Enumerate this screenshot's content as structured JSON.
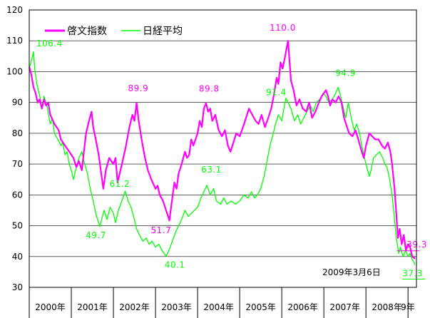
{
  "chart_data": {
    "type": "line",
    "xlabel": "",
    "ylabel": "",
    "ylim": [
      30,
      120
    ],
    "yticks": [
      30,
      40,
      50,
      60,
      70,
      80,
      90,
      100,
      110,
      120
    ],
    "xlim": [
      2000.0,
      2009.2
    ],
    "x_categories": [
      "2000年",
      "2001年",
      "2002年",
      "2003年",
      "2004年",
      "2005年",
      "2006年",
      "2007年",
      "2008年",
      "9年"
    ],
    "grid": true,
    "legend": "top-left",
    "background": "#ffffff",
    "series": [
      {
        "name": "啓文指数",
        "color": "#ff00ff",
        "points": [
          [
            2000.0,
            101.5
          ],
          [
            2000.05,
            99
          ],
          [
            2000.1,
            95
          ],
          [
            2000.15,
            93
          ],
          [
            2000.2,
            90
          ],
          [
            2000.25,
            91
          ],
          [
            2000.3,
            88
          ],
          [
            2000.35,
            91
          ],
          [
            2000.4,
            89
          ],
          [
            2000.45,
            90
          ],
          [
            2000.5,
            86
          ],
          [
            2000.6,
            83
          ],
          [
            2000.7,
            81
          ],
          [
            2000.75,
            78
          ],
          [
            2000.85,
            76
          ],
          [
            2000.95,
            74
          ],
          [
            2001.05,
            72
          ],
          [
            2001.12,
            69
          ],
          [
            2001.18,
            71
          ],
          [
            2001.25,
            68
          ],
          [
            2001.3,
            74
          ],
          [
            2001.35,
            80
          ],
          [
            2001.42,
            84
          ],
          [
            2001.48,
            87
          ],
          [
            2001.52,
            82
          ],
          [
            2001.58,
            78
          ],
          [
            2001.65,
            73
          ],
          [
            2001.72,
            66
          ],
          [
            2001.76,
            62
          ],
          [
            2001.82,
            68
          ],
          [
            2001.9,
            72
          ],
          [
            2002.0,
            70
          ],
          [
            2002.05,
            72
          ],
          [
            2002.1,
            64
          ],
          [
            2002.15,
            67
          ],
          [
            2002.22,
            71
          ],
          [
            2002.3,
            76
          ],
          [
            2002.38,
            82
          ],
          [
            2002.45,
            86
          ],
          [
            2002.5,
            84
          ],
          [
            2002.55,
            89.9
          ],
          [
            2002.6,
            84
          ],
          [
            2002.67,
            78
          ],
          [
            2002.75,
            72
          ],
          [
            2002.82,
            68
          ],
          [
            2002.9,
            65
          ],
          [
            2003.0,
            62
          ],
          [
            2003.05,
            63
          ],
          [
            2003.1,
            60
          ],
          [
            2003.18,
            58
          ],
          [
            2003.25,
            55
          ],
          [
            2003.3,
            53
          ],
          [
            2003.33,
            51.7
          ],
          [
            2003.38,
            57
          ],
          [
            2003.45,
            64
          ],
          [
            2003.5,
            62
          ],
          [
            2003.55,
            67
          ],
          [
            2003.62,
            70
          ],
          [
            2003.7,
            74
          ],
          [
            2003.75,
            72
          ],
          [
            2003.8,
            73
          ],
          [
            2003.85,
            78
          ],
          [
            2003.9,
            76
          ],
          [
            2004.0,
            80
          ],
          [
            2004.05,
            84
          ],
          [
            2004.1,
            82
          ],
          [
            2004.15,
            88
          ],
          [
            2004.2,
            89.8
          ],
          [
            2004.25,
            87
          ],
          [
            2004.3,
            88
          ],
          [
            2004.35,
            84
          ],
          [
            2004.42,
            86
          ],
          [
            2004.5,
            81
          ],
          [
            2004.58,
            79
          ],
          [
            2004.65,
            81
          ],
          [
            2004.72,
            76
          ],
          [
            2004.78,
            74
          ],
          [
            2004.85,
            77
          ],
          [
            2004.92,
            80
          ],
          [
            2005.0,
            79
          ],
          [
            2005.08,
            82
          ],
          [
            2005.15,
            85
          ],
          [
            2005.22,
            88
          ],
          [
            2005.3,
            86
          ],
          [
            2005.38,
            84
          ],
          [
            2005.45,
            83
          ],
          [
            2005.52,
            86
          ],
          [
            2005.6,
            82
          ],
          [
            2005.68,
            85
          ],
          [
            2005.75,
            88
          ],
          [
            2005.82,
            93
          ],
          [
            2005.88,
            98
          ],
          [
            2005.92,
            96
          ],
          [
            2005.97,
            103
          ],
          [
            2006.02,
            101
          ],
          [
            2006.08,
            105
          ],
          [
            2006.12,
            108
          ],
          [
            2006.15,
            110.0
          ],
          [
            2006.18,
            104
          ],
          [
            2006.22,
            97
          ],
          [
            2006.28,
            94
          ],
          [
            2006.35,
            89
          ],
          [
            2006.42,
            91
          ],
          [
            2006.5,
            88
          ],
          [
            2006.58,
            87
          ],
          [
            2006.65,
            90
          ],
          [
            2006.72,
            85
          ],
          [
            2006.8,
            87
          ],
          [
            2006.88,
            90
          ],
          [
            2006.95,
            92
          ],
          [
            2007.0,
            93
          ],
          [
            2007.05,
            94
          ],
          [
            2007.1,
            92
          ],
          [
            2007.15,
            89
          ],
          [
            2007.2,
            91
          ],
          [
            2007.28,
            90
          ],
          [
            2007.35,
            92
          ],
          [
            2007.42,
            90
          ],
          [
            2007.48,
            85
          ],
          [
            2007.55,
            82
          ],
          [
            2007.6,
            80
          ],
          [
            2007.68,
            79
          ],
          [
            2007.75,
            81
          ],
          [
            2007.82,
            78
          ],
          [
            2007.9,
            74
          ],
          [
            2007.95,
            72
          ],
          [
            2008.0,
            76
          ],
          [
            2008.08,
            80
          ],
          [
            2008.15,
            79
          ],
          [
            2008.22,
            78
          ],
          [
            2008.3,
            78
          ],
          [
            2008.38,
            76
          ],
          [
            2008.45,
            75
          ],
          [
            2008.52,
            77
          ],
          [
            2008.58,
            74
          ],
          [
            2008.62,
            70
          ],
          [
            2008.68,
            62
          ],
          [
            2008.72,
            54
          ],
          [
            2008.76,
            46
          ],
          [
            2008.8,
            49
          ],
          [
            2008.85,
            44
          ],
          [
            2008.9,
            47
          ],
          [
            2008.95,
            42
          ],
          [
            2009.0,
            44
          ],
          [
            2009.05,
            43
          ],
          [
            2009.1,
            40
          ],
          [
            2009.17,
            39.3
          ]
        ]
      },
      {
        "name": "日経平均",
        "color": "#00ff00",
        "points": [
          [
            2000.0,
            101
          ],
          [
            2000.04,
            103
          ],
          [
            2000.1,
            106.4
          ],
          [
            2000.13,
            101
          ],
          [
            2000.18,
            96
          ],
          [
            2000.25,
            92
          ],
          [
            2000.3,
            88
          ],
          [
            2000.35,
            92
          ],
          [
            2000.42,
            89
          ],
          [
            2000.5,
            83
          ],
          [
            2000.55,
            85
          ],
          [
            2000.6,
            80
          ],
          [
            2000.68,
            78
          ],
          [
            2000.75,
            76
          ],
          [
            2000.8,
            77
          ],
          [
            2000.85,
            73
          ],
          [
            2000.9,
            74
          ],
          [
            2000.95,
            70
          ],
          [
            2001.0,
            68
          ],
          [
            2001.05,
            65
          ],
          [
            2001.1,
            68
          ],
          [
            2001.18,
            72
          ],
          [
            2001.25,
            74
          ],
          [
            2001.3,
            71
          ],
          [
            2001.38,
            67
          ],
          [
            2001.45,
            62
          ],
          [
            2001.52,
            58
          ],
          [
            2001.6,
            53
          ],
          [
            2001.68,
            49.7
          ],
          [
            2001.72,
            52
          ],
          [
            2001.78,
            55
          ],
          [
            2001.85,
            52
          ],
          [
            2001.92,
            56
          ],
          [
            2002.0,
            54
          ],
          [
            2002.05,
            51
          ],
          [
            2002.12,
            55
          ],
          [
            2002.2,
            58
          ],
          [
            2002.28,
            61.2
          ],
          [
            2002.35,
            58
          ],
          [
            2002.42,
            56
          ],
          [
            2002.48,
            53
          ],
          [
            2002.55,
            49
          ],
          [
            2002.62,
            47
          ],
          [
            2002.7,
            45
          ],
          [
            2002.78,
            46
          ],
          [
            2002.85,
            44
          ],
          [
            2002.92,
            45
          ],
          [
            2003.0,
            43
          ],
          [
            2003.08,
            44
          ],
          [
            2003.15,
            42
          ],
          [
            2003.25,
            40.1
          ],
          [
            2003.32,
            42
          ],
          [
            2003.4,
            45
          ],
          [
            2003.48,
            48
          ],
          [
            2003.55,
            50
          ],
          [
            2003.62,
            52
          ],
          [
            2003.7,
            55
          ],
          [
            2003.78,
            53
          ],
          [
            2003.85,
            54
          ],
          [
            2004.0,
            56
          ],
          [
            2004.08,
            59
          ],
          [
            2004.15,
            61
          ],
          [
            2004.22,
            63.1
          ],
          [
            2004.3,
            60
          ],
          [
            2004.38,
            62
          ],
          [
            2004.45,
            58
          ],
          [
            2004.55,
            57
          ],
          [
            2004.62,
            59
          ],
          [
            2004.7,
            57
          ],
          [
            2004.8,
            58
          ],
          [
            2004.9,
            57
          ],
          [
            2005.0,
            58
          ],
          [
            2005.1,
            60
          ],
          [
            2005.2,
            59
          ],
          [
            2005.28,
            61
          ],
          [
            2005.35,
            59
          ],
          [
            2005.42,
            60
          ],
          [
            2005.5,
            62
          ],
          [
            2005.58,
            66
          ],
          [
            2005.65,
            71
          ],
          [
            2005.72,
            76
          ],
          [
            2005.8,
            80
          ],
          [
            2005.85,
            83
          ],
          [
            2005.92,
            86
          ],
          [
            2006.0,
            84
          ],
          [
            2006.05,
            88
          ],
          [
            2006.1,
            91.4
          ],
          [
            2006.15,
            90
          ],
          [
            2006.22,
            88
          ],
          [
            2006.3,
            84
          ],
          [
            2006.38,
            86
          ],
          [
            2006.45,
            83
          ],
          [
            2006.52,
            85
          ],
          [
            2006.6,
            87
          ],
          [
            2006.68,
            89
          ],
          [
            2006.75,
            87
          ],
          [
            2006.82,
            90
          ],
          [
            2006.9,
            91
          ],
          [
            2006.98,
            93
          ],
          [
            2007.05,
            92
          ],
          [
            2007.12,
            90
          ],
          [
            2007.2,
            91
          ],
          [
            2007.28,
            93
          ],
          [
            2007.34,
            94.9
          ],
          [
            2007.4,
            92
          ],
          [
            2007.48,
            87
          ],
          [
            2007.52,
            85
          ],
          [
            2007.58,
            90
          ],
          [
            2007.65,
            85
          ],
          [
            2007.72,
            81
          ],
          [
            2007.78,
            83
          ],
          [
            2007.85,
            80
          ],
          [
            2007.9,
            76
          ],
          [
            2007.95,
            73
          ],
          [
            2008.0,
            70
          ],
          [
            2008.08,
            66
          ],
          [
            2008.12,
            68
          ],
          [
            2008.18,
            72
          ],
          [
            2008.25,
            73
          ],
          [
            2008.32,
            74
          ],
          [
            2008.4,
            72
          ],
          [
            2008.45,
            70
          ],
          [
            2008.5,
            69
          ],
          [
            2008.55,
            66
          ],
          [
            2008.62,
            60
          ],
          [
            2008.68,
            52
          ],
          [
            2008.72,
            46
          ],
          [
            2008.78,
            41
          ],
          [
            2008.82,
            43
          ],
          [
            2008.88,
            40
          ],
          [
            2008.94,
            42
          ],
          [
            2009.0,
            40
          ],
          [
            2009.05,
            41
          ],
          [
            2009.1,
            39
          ],
          [
            2009.17,
            37.3
          ]
        ]
      }
    ],
    "annotations": [
      {
        "text": "106.4",
        "series": "日経平均",
        "x": 2000.1,
        "y": 106.4
      },
      {
        "text": "49.7",
        "series": "日経平均",
        "x": 2001.68,
        "y": 49.7
      },
      {
        "text": "61.2",
        "series": "日経平均",
        "x": 2002.28,
        "y": 61.2
      },
      {
        "text": "40.1",
        "series": "日経平均",
        "x": 2003.25,
        "y": 40.1
      },
      {
        "text": "63.1",
        "series": "日経平均",
        "x": 2004.22,
        "y": 63.1
      },
      {
        "text": "91.4",
        "series": "日経平均",
        "x": 2006.1,
        "y": 91.4
      },
      {
        "text": "94.9",
        "series": "日経平均",
        "x": 2007.34,
        "y": 94.9
      },
      {
        "text": "37.3",
        "series": "日経平均",
        "x": 2009.17,
        "y": 37.3
      },
      {
        "text": "89.9",
        "series": "啓文指数",
        "x": 2002.55,
        "y": 89.9
      },
      {
        "text": "51.7",
        "series": "啓文指数",
        "x": 2003.33,
        "y": 51.7
      },
      {
        "text": "89.8",
        "series": "啓文指数",
        "x": 2004.2,
        "y": 89.8
      },
      {
        "text": "110.0",
        "series": "啓文指数",
        "x": 2006.15,
        "y": 110.0
      },
      {
        "text": "39.3",
        "series": "啓文指数",
        "x": 2009.17,
        "y": 39.3
      }
    ],
    "date_note": "2009年3月6日"
  }
}
